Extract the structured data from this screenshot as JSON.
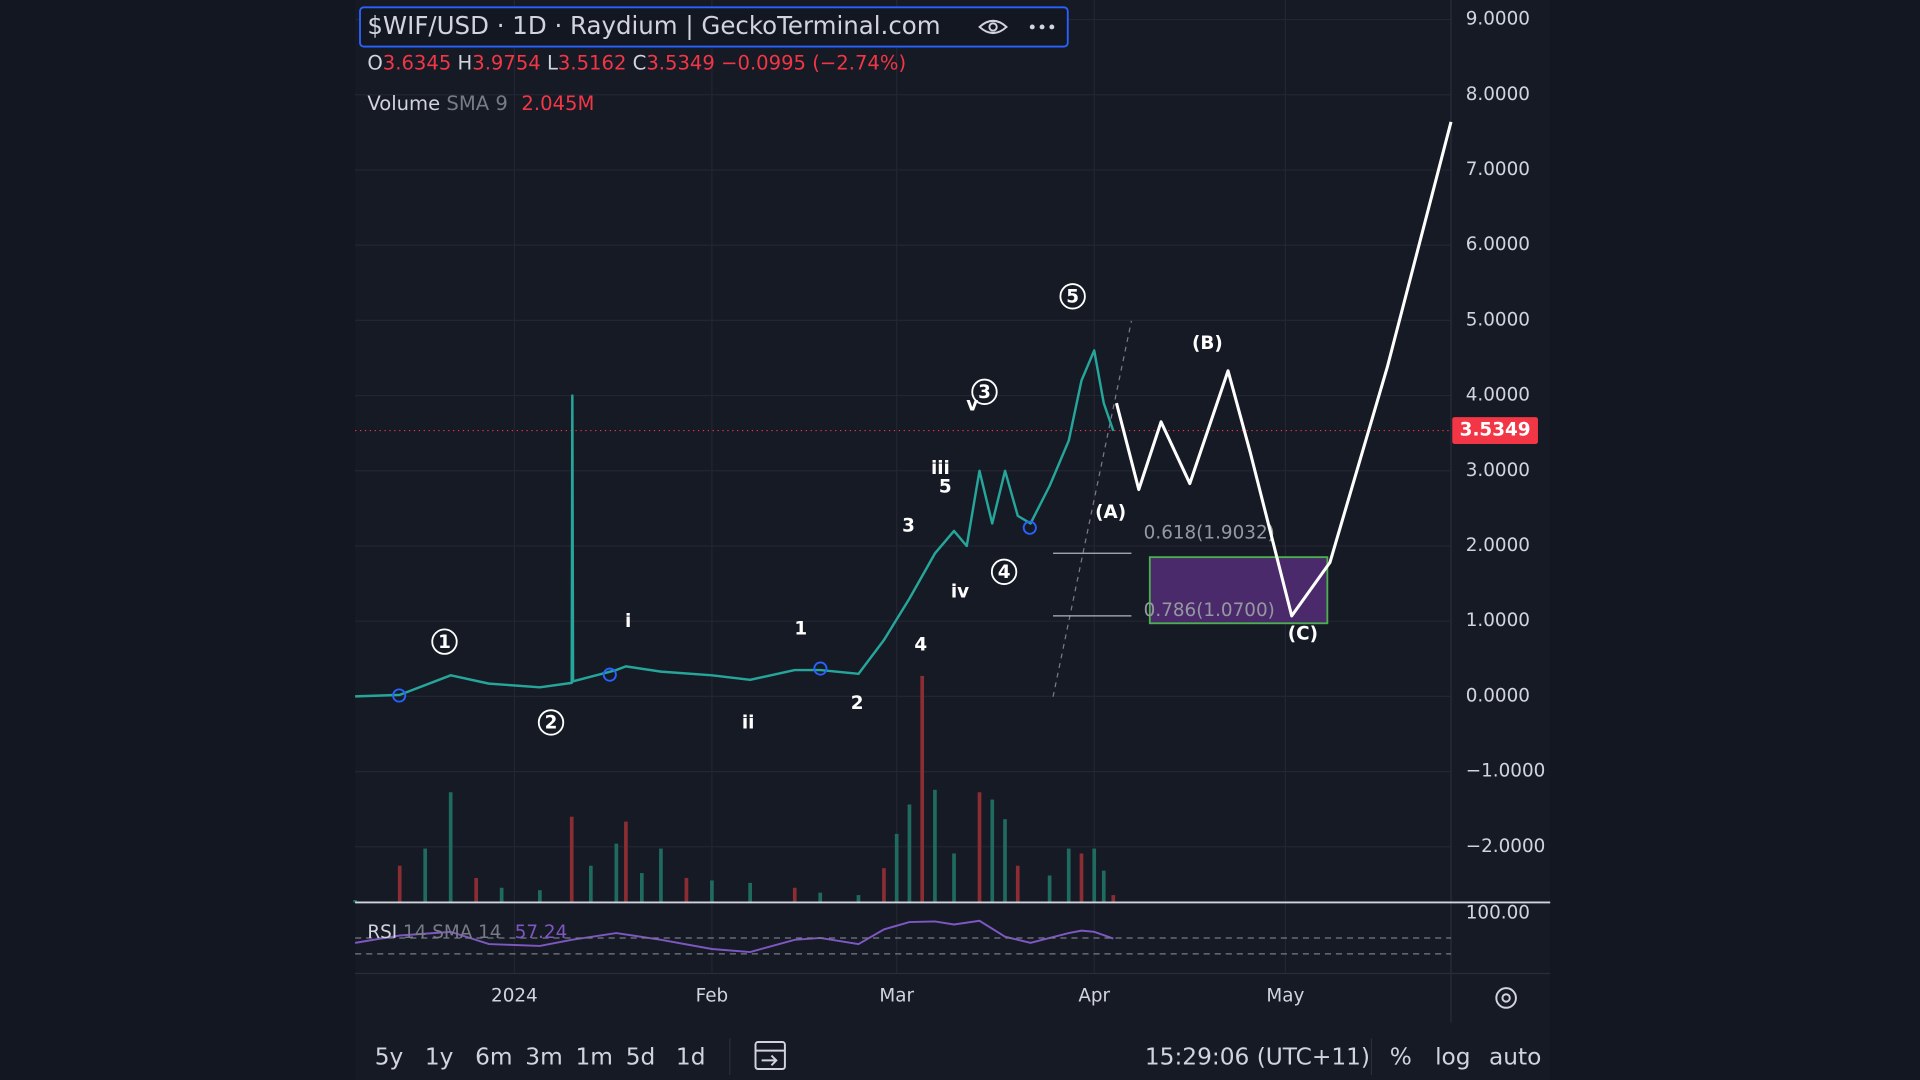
{
  "chart_data": {
    "type": "line",
    "title": "$WIF/USD · 1D · Raydium | GeckoTerminal.com",
    "ohlc": {
      "o_label": "O",
      "o": "3.6345",
      "h_label": "H",
      "h": "3.9754",
      "l_label": "L",
      "l": "3.5162",
      "c_label": "C",
      "c": "3.5349",
      "change": "−0.0995 (−2.74%)"
    },
    "volume_legend": {
      "name": "Volume",
      "sma": "SMA 9",
      "value": "2.045M"
    },
    "rsi_legend": {
      "name": "RSI",
      "length": "14",
      "sma": "SMA 14",
      "value": "57.24"
    },
    "last_price": {
      "value": 3.5349,
      "label": "3.5349"
    },
    "xlim": [
      -25,
      147
    ],
    "xticks": [
      {
        "value": 0,
        "label": "2024"
      },
      {
        "value": 31,
        "label": "Feb"
      },
      {
        "value": 60,
        "label": "Mar"
      },
      {
        "value": 91,
        "label": "Apr"
      },
      {
        "value": 121,
        "label": "May"
      }
    ],
    "ylim": [
      -2.74,
      9.26
    ],
    "yticks": [
      {
        "value": 9,
        "label": "9.0000"
      },
      {
        "value": 8,
        "label": "8.0000"
      },
      {
        "value": 7,
        "label": "7.0000"
      },
      {
        "value": 6,
        "label": "6.0000"
      },
      {
        "value": 5,
        "label": "5.0000"
      },
      {
        "value": 4,
        "label": "4.0000"
      },
      {
        "value": 3,
        "label": "3.0000"
      },
      {
        "value": 2,
        "label": "2.0000"
      },
      {
        "value": 1,
        "label": "1.0000"
      },
      {
        "value": 0,
        "label": "0.0000"
      },
      {
        "value": -1,
        "label": "−1.0000"
      },
      {
        "value": -2,
        "label": "−2.0000"
      }
    ],
    "grid": true,
    "series": [
      {
        "color": "#26a69a",
        "x": [
          -25,
          -18,
          -10,
          -4,
          4,
          9,
          9.1,
          9.2,
          16,
          17.5,
          23,
          31,
          37,
          44,
          48,
          54,
          58,
          62,
          66,
          69,
          71,
          73,
          75,
          77,
          79,
          81,
          84,
          87,
          89,
          91,
          92.5,
          94
        ],
        "values": [
          0,
          0.02,
          0.28,
          0.17,
          0.12,
          0.18,
          4.0,
          0.2,
          0.35,
          0.4,
          0.33,
          0.28,
          0.22,
          0.35,
          0.35,
          0.3,
          0.75,
          1.3,
          1.9,
          2.2,
          2.0,
          3.0,
          2.3,
          3.0,
          2.4,
          2.3,
          2.8,
          3.4,
          4.2,
          4.6,
          3.9,
          3.53
        ]
      },
      {
        "color": "#ffffff",
        "x": [
          94.5,
          98,
          101.5,
          106,
          112,
          115.5,
          122,
          128,
          137,
          147
        ],
        "values": [
          3.9,
          2.75,
          3.65,
          2.83,
          4.33,
          3.24,
          1.07,
          1.78,
          4.38,
          7.64
        ]
      }
    ],
    "volume_x": [
      -25,
      -18,
      -14,
      -10,
      -6,
      -2,
      4,
      9,
      12,
      16,
      17.5,
      20,
      23,
      27,
      31,
      37,
      44,
      48,
      54,
      58,
      60,
      62,
      64,
      66,
      69,
      73,
      75,
      77,
      79,
      84,
      87,
      89,
      91,
      92.5,
      94
    ],
    "volume": [
      0.1,
      1.5,
      2.2,
      4.5,
      1.0,
      0.6,
      0.5,
      3.5,
      1.5,
      2.4,
      3.3,
      1.2,
      2.2,
      1.0,
      0.9,
      0.8,
      0.6,
      0.4,
      0.3,
      1.4,
      2.8,
      4.0,
      9.25,
      4.6,
      2.0,
      4.5,
      4.2,
      3.4,
      1.5,
      1.1,
      2.2,
      2.0,
      2.2,
      1.3,
      0.3
    ],
    "vlim": [
      0,
      12
    ],
    "rsi_x": [
      -25,
      -18,
      -10,
      -4,
      4,
      9,
      16,
      23,
      31,
      37,
      44,
      48,
      54,
      58,
      62,
      66,
      69,
      73,
      77,
      81,
      84,
      87,
      89,
      91,
      94
    ],
    "rsi": [
      50,
      62,
      68,
      48,
      45,
      55,
      66,
      55,
      40,
      35,
      55,
      58,
      48,
      72,
      84,
      85,
      80,
      86,
      60,
      50,
      58,
      66,
      70,
      68,
      57
    ],
    "rsi_ylim": [
      0,
      100
    ],
    "rsi_yticks": [
      {
        "value": 100,
        "label": "100.00"
      }
    ],
    "fib_levels": [
      {
        "value": 1.9032,
        "label": "0.618(1.9032)"
      },
      {
        "value": 1.07,
        "label": "0.786(1.0700)"
      }
    ],
    "annotations": [
      {
        "text": "1",
        "circled": true
      },
      {
        "text": "2",
        "circled": true
      },
      {
        "text": "3",
        "circled": true
      },
      {
        "text": "4",
        "circled": true
      },
      {
        "text": "5",
        "circled": true
      },
      {
        "text": "i"
      },
      {
        "text": "ii"
      },
      {
        "text": "iii"
      },
      {
        "text": "iv"
      },
      {
        "text": "v"
      },
      {
        "text": "1"
      },
      {
        "text": "2"
      },
      {
        "text": "3"
      },
      {
        "text": "4"
      },
      {
        "text": "5"
      },
      {
        "text": "(A)"
      },
      {
        "text": "(B)"
      },
      {
        "text": "(C)"
      }
    ],
    "toolbar": {
      "ranges": [
        "5y",
        "1y",
        "6m",
        "3m",
        "1m",
        "5d",
        "1d"
      ],
      "clock": "15:29:06 (UTC+11)",
      "percent": "%",
      "log": "log",
      "auto": "auto"
    }
  }
}
